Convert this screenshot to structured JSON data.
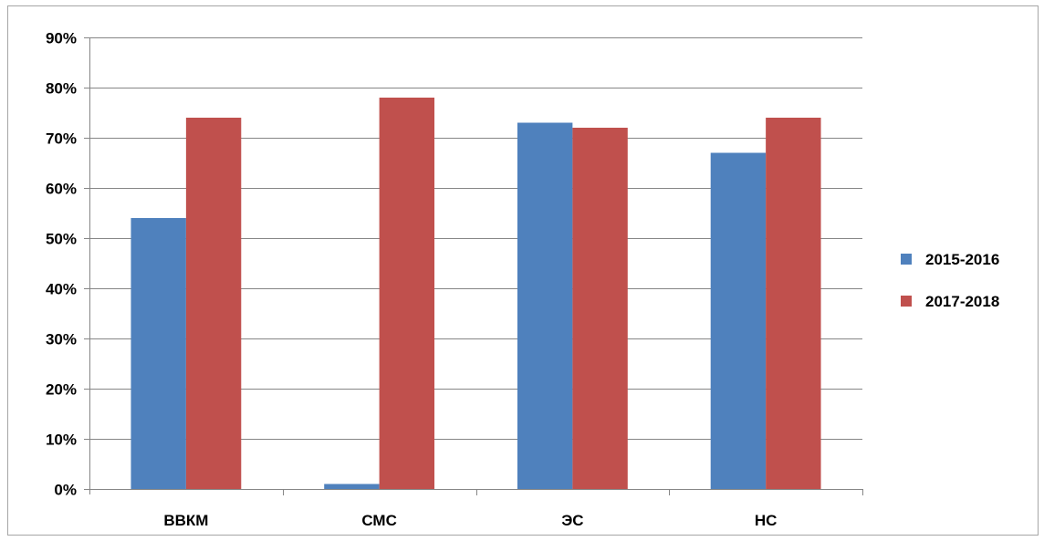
{
  "chart_data": {
    "type": "bar",
    "categories": [
      "ВВКМ",
      "СМС",
      "ЭС",
      "НС"
    ],
    "series": [
      {
        "name": "2015-2016",
        "values": [
          54,
          1,
          73,
          67
        ],
        "color": "#4f81bd"
      },
      {
        "name": "2017-2018",
        "values": [
          74,
          78,
          72,
          74
        ],
        "color": "#c0504d"
      }
    ],
    "ylim": [
      0,
      90
    ],
    "ytick_step": 10,
    "ytick_format": "percent",
    "grid": true,
    "legend_position": "right",
    "title": "",
    "xlabel": "",
    "ylabel": ""
  }
}
